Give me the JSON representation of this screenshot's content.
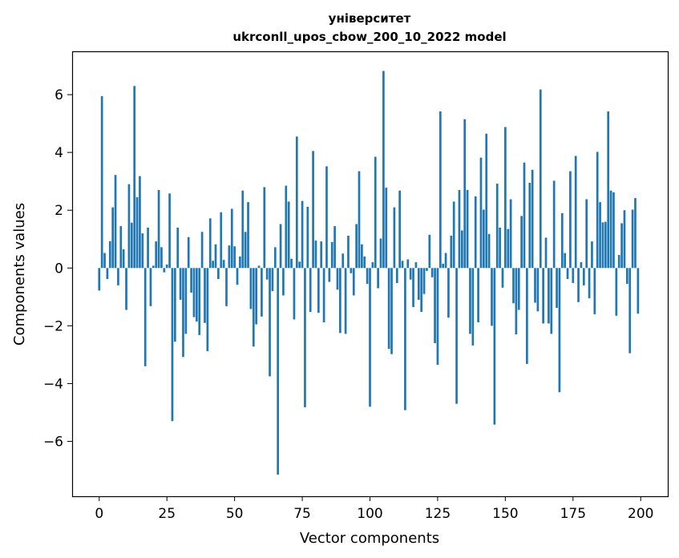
{
  "chart_data": {
    "type": "bar",
    "title": "університет",
    "subtitle": "ukrconll_upos_cbow_200_10_2022 model",
    "xlabel": "Vector components",
    "ylabel": "Components values",
    "xlim": [
      -10,
      210
    ],
    "ylim": [
      -7.9,
      7.5
    ],
    "xticks": [
      0,
      25,
      50,
      75,
      100,
      125,
      150,
      175,
      200
    ],
    "yticks": [
      -6,
      -4,
      -2,
      0,
      2,
      4,
      6
    ],
    "ytick_labels": [
      "−6",
      "−4",
      "−2",
      "0",
      "2",
      "4",
      "6"
    ],
    "color": "#1f77b4",
    "grid": false,
    "values": [
      -0.78,
      5.95,
      0.52,
      -0.38,
      0.93,
      2.1,
      3.22,
      -0.6,
      1.45,
      0.65,
      -1.45,
      2.9,
      1.57,
      6.3,
      2.45,
      3.18,
      1.2,
      -3.4,
      1.4,
      -1.32,
      0.08,
      0.92,
      2.7,
      0.72,
      -0.15,
      0.12,
      2.58,
      -5.3,
      -2.55,
      1.4,
      -1.1,
      -3.08,
      -2.28,
      1.07,
      -0.85,
      -1.7,
      -1.85,
      -2.32,
      1.25,
      -1.9,
      -2.88,
      1.72,
      0.25,
      0.82,
      -0.38,
      1.93,
      0.28,
      -1.32,
      0.78,
      2.05,
      0.75,
      -0.58,
      0.4,
      2.68,
      1.25,
      2.28,
      -1.42,
      -2.72,
      -1.95,
      0.08,
      -1.68,
      2.8,
      -0.4,
      -3.75,
      -0.8,
      0.72,
      -7.15,
      1.52,
      -0.95,
      2.85,
      2.3,
      0.32,
      -1.78,
      4.55,
      0.22,
      2.32,
      -4.82,
      2.12,
      -1.52,
      4.05,
      0.95,
      -1.55,
      0.92,
      -1.88,
      3.52,
      -0.48,
      0.9,
      1.45,
      -0.75,
      -2.25,
      0.5,
      -2.28,
      1.12,
      -0.18,
      -0.95,
      1.52,
      3.35,
      0.82,
      0.4,
      -0.55,
      -4.8,
      0.2,
      3.85,
      -0.7,
      1.02,
      6.82,
      2.78,
      -2.8,
      -2.98,
      2.1,
      -0.52,
      2.68,
      0.25,
      -4.92,
      0.3,
      -0.4,
      -1.35,
      0.2,
      -1.1,
      -1.52,
      -0.9,
      -0.1,
      1.15,
      -0.32,
      -2.6,
      -3.35,
      5.42,
      0.15,
      0.52,
      -1.72,
      1.12,
      2.3,
      -4.7,
      2.7,
      1.3,
      5.15,
      2.7,
      -2.28,
      -2.68,
      2.48,
      -1.88,
      3.82,
      2.02,
      4.65,
      1.18,
      -2.0,
      -5.42,
      2.92,
      1.4,
      -0.68,
      4.88,
      1.35,
      2.38,
      -1.22,
      -2.3,
      -1.45,
      1.8,
      3.65,
      -3.32,
      2.95,
      3.4,
      -1.2,
      -1.5,
      6.18,
      -1.92,
      1.05,
      -1.92,
      -2.28,
      3.02,
      -1.38,
      -4.3,
      1.9,
      0.52,
      -0.38,
      3.35,
      -0.52,
      3.88,
      -1.18,
      0.2,
      -0.6,
      2.38,
      -1.05,
      0.92,
      -1.6,
      4.02,
      2.28,
      1.58,
      1.6,
      5.42,
      2.68,
      2.62,
      -1.65,
      0.45,
      1.55,
      2.0,
      -0.55,
      -2.95,
      2.02,
      2.42,
      -1.58
    ]
  }
}
